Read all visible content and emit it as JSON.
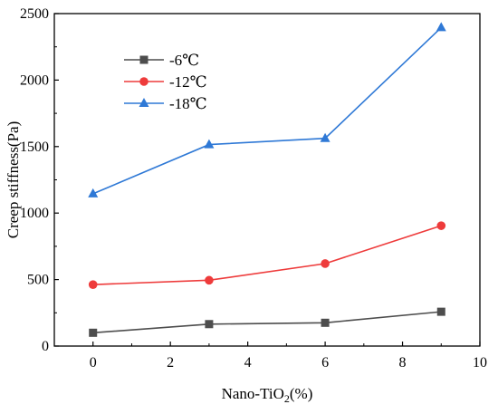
{
  "chart_data": {
    "type": "line",
    "title": "",
    "xlabel": "Nano-TiO₂(%)",
    "ylabel": "Creep stiffness(Pa)",
    "xlim": [
      -1,
      10
    ],
    "ylim": [
      0,
      2500
    ],
    "xticks": [
      0,
      2,
      4,
      6,
      8,
      10
    ],
    "yticks": [
      0,
      500,
      1000,
      1500,
      2000,
      2500
    ],
    "x": [
      0,
      3,
      6,
      9
    ],
    "grid": false,
    "legend_position": "top-left",
    "series": [
      {
        "name": "-6℃",
        "values": [
          100,
          165,
          175,
          258
        ],
        "color": "#4d4d4d",
        "marker": "square"
      },
      {
        "name": "-12℃",
        "values": [
          462,
          495,
          620,
          905
        ],
        "color": "#ee3b3b",
        "marker": "circle"
      },
      {
        "name": "-18℃",
        "values": [
          1145,
          1515,
          1562,
          2395
        ],
        "color": "#2f79d6",
        "marker": "triangle"
      }
    ]
  }
}
